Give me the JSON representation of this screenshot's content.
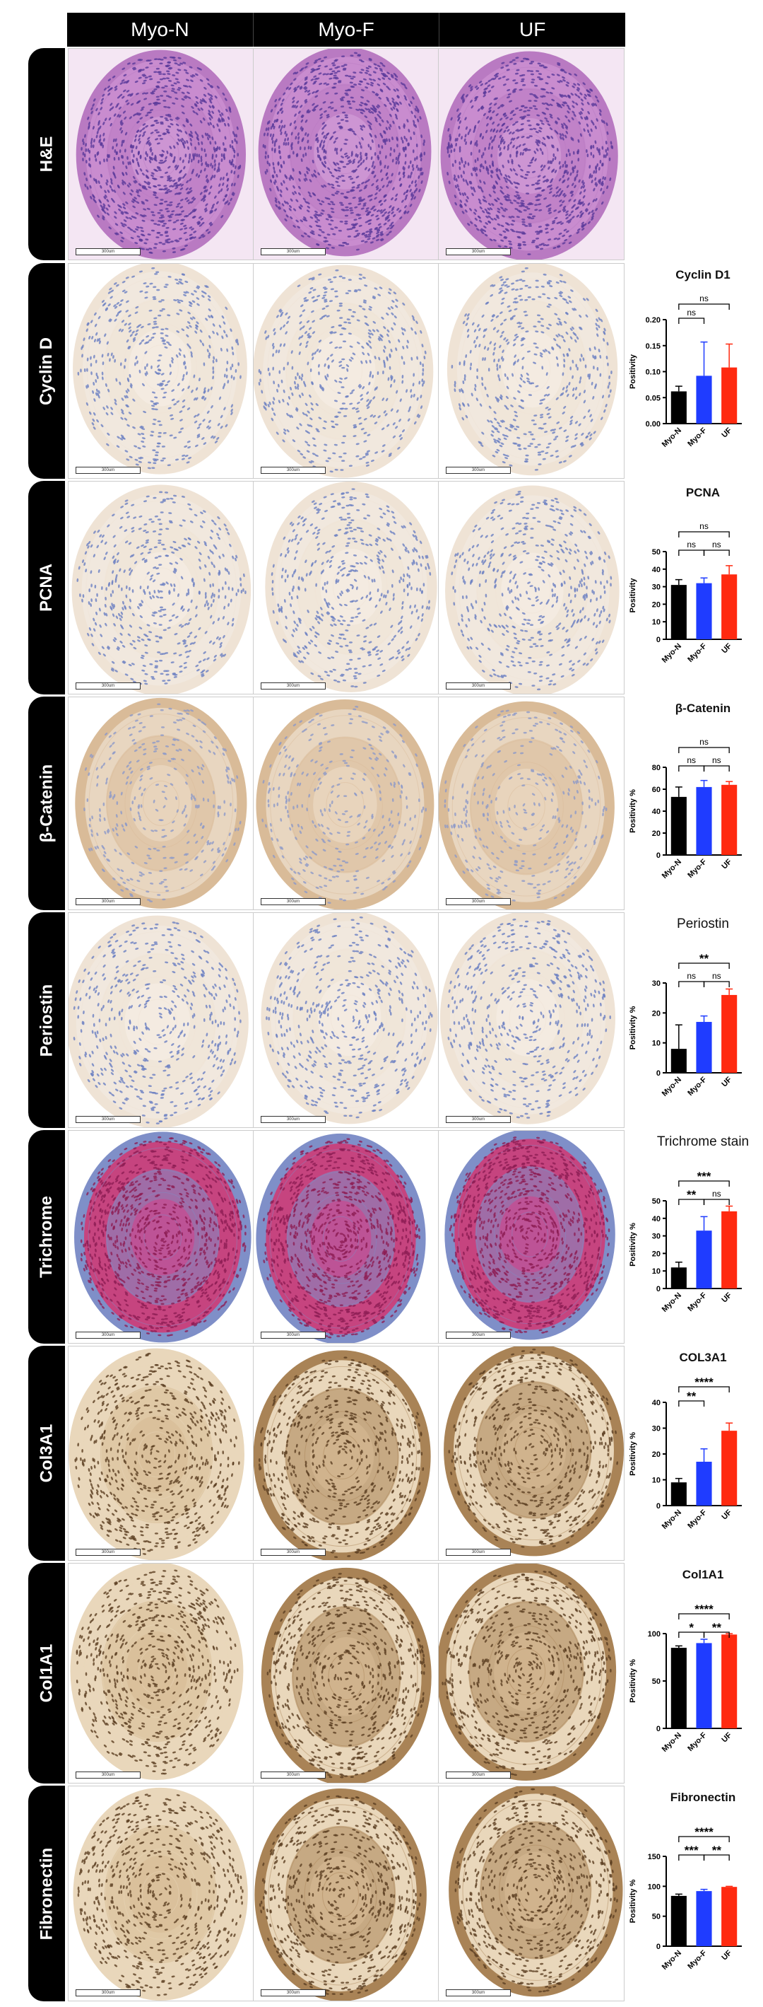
{
  "columns": [
    "Myo-N",
    "Myo-F",
    "UF"
  ],
  "scale_bar_label": "300um",
  "colors": {
    "Myo-N": "#000000",
    "Myo-F": "#1f3cff",
    "UF": "#ff2a10"
  },
  "rows": [
    {
      "label": "H&E",
      "stain": "he"
    },
    {
      "label": "Cyclin D",
      "stain": "ihc_light",
      "chart_data": {
        "type": "bar",
        "title": "Cyclin D1",
        "ylabel": "Positivity",
        "categories": [
          "Myo-N",
          "Myo-F",
          "UF"
        ],
        "values": [
          0.062,
          0.092,
          0.108
        ],
        "errors": [
          0.01,
          0.065,
          0.045
        ],
        "ylim": [
          0,
          0.2
        ],
        "yticks": [
          "0.00",
          "0.05",
          "0.10",
          "0.15",
          "0.20"
        ],
        "comparisons": [
          {
            "from": 0,
            "to": 1,
            "label": "ns"
          },
          {
            "from": 0,
            "to": 2,
            "label": "ns"
          }
        ]
      }
    },
    {
      "label": "PCNA",
      "stain": "ihc_light",
      "chart_data": {
        "type": "bar",
        "title": "PCNA",
        "ylabel": "Positivity",
        "categories": [
          "Myo-N",
          "Myo-F",
          "UF"
        ],
        "values": [
          31,
          32,
          37
        ],
        "errors": [
          3,
          3,
          5
        ],
        "ylim": [
          0,
          50
        ],
        "yticks": [
          "0",
          "10",
          "20",
          "30",
          "40",
          "50"
        ],
        "comparisons": [
          {
            "from": 0,
            "to": 1,
            "label": "ns"
          },
          {
            "from": 1,
            "to": 2,
            "label": "ns"
          },
          {
            "from": 0,
            "to": 2,
            "label": "ns"
          }
        ]
      }
    },
    {
      "label": "β-Catenin",
      "stain": "ihc_brown",
      "chart_data": {
        "type": "bar",
        "title": "β-Catenin",
        "ylabel": "Positivity %",
        "categories": [
          "Myo-N",
          "Myo-F",
          "UF"
        ],
        "values": [
          53,
          62,
          64
        ],
        "errors": [
          9,
          6,
          3
        ],
        "ylim": [
          0,
          80
        ],
        "yticks": [
          "0",
          "20",
          "40",
          "60",
          "80"
        ],
        "comparisons": [
          {
            "from": 0,
            "to": 1,
            "label": "ns"
          },
          {
            "from": 1,
            "to": 2,
            "label": "ns"
          },
          {
            "from": 0,
            "to": 2,
            "label": "ns"
          }
        ]
      }
    },
    {
      "label": "Periostin",
      "stain": "ihc_light",
      "chart_data": {
        "type": "bar",
        "title": "Periostin",
        "ylabel": "Positivity %",
        "categories": [
          "Myo-N",
          "Myo-F",
          "UF"
        ],
        "values": [
          8,
          17,
          26
        ],
        "errors": [
          8,
          2,
          2
        ],
        "ylim": [
          0,
          30
        ],
        "yticks": [
          "0",
          "10",
          "20",
          "30"
        ],
        "comparisons": [
          {
            "from": 0,
            "to": 1,
            "label": "ns"
          },
          {
            "from": 1,
            "to": 2,
            "label": "ns"
          },
          {
            "from": 0,
            "to": 2,
            "label": "**"
          }
        ]
      }
    },
    {
      "label": "Trichrome",
      "stain": "trichrome",
      "chart_data": {
        "type": "bar",
        "title": "Trichrome stain",
        "ylabel": "Positivity %",
        "categories": [
          "Myo-N",
          "Myo-F",
          "UF"
        ],
        "values": [
          12,
          33,
          44
        ],
        "errors": [
          3,
          8,
          3
        ],
        "ylim": [
          0,
          50
        ],
        "yticks": [
          "0",
          "10",
          "20",
          "30",
          "40",
          "50"
        ],
        "comparisons": [
          {
            "from": 0,
            "to": 1,
            "label": "**"
          },
          {
            "from": 1,
            "to": 2,
            "label": "ns"
          },
          {
            "from": 0,
            "to": 2,
            "label": "***"
          }
        ]
      }
    },
    {
      "label": "Col3A1",
      "stain": "ihc_dark",
      "chart_data": {
        "type": "bar",
        "title": "COL3A1",
        "ylabel": "Positivity %",
        "categories": [
          "Myo-N",
          "Myo-F",
          "UF"
        ],
        "values": [
          9,
          17,
          29
        ],
        "errors": [
          1.5,
          5,
          3
        ],
        "ylim": [
          0,
          40
        ],
        "yticks": [
          "0",
          "10",
          "20",
          "30",
          "40"
        ],
        "comparisons": [
          {
            "from": 0,
            "to": 1,
            "label": "**"
          },
          {
            "from": 0,
            "to": 2,
            "label": "****"
          }
        ]
      }
    },
    {
      "label": "Col1A1",
      "stain": "ihc_dark",
      "chart_data": {
        "type": "bar",
        "title": "Col1A1",
        "ylabel": "Positivity %",
        "categories": [
          "Myo-N",
          "Myo-F",
          "UF"
        ],
        "values": [
          85,
          90,
          99
        ],
        "errors": [
          2,
          4,
          1
        ],
        "ylim": [
          0,
          100
        ],
        "yticks": [
          "0",
          "50",
          "100"
        ],
        "comparisons": [
          {
            "from": 0,
            "to": 1,
            "label": "*"
          },
          {
            "from": 1,
            "to": 2,
            "label": "**"
          },
          {
            "from": 0,
            "to": 2,
            "label": "****"
          }
        ]
      }
    },
    {
      "label": "Fibronectin",
      "stain": "ihc_dark",
      "chart_data": {
        "type": "bar",
        "title": "Fibronectin",
        "ylabel": "Positivity %",
        "categories": [
          "Myo-N",
          "Myo-F",
          "UF"
        ],
        "values": [
          84,
          92,
          99
        ],
        "errors": [
          3,
          3,
          1
        ],
        "ylim": [
          0,
          150
        ],
        "yticks": [
          "0",
          "50",
          "100",
          "150"
        ],
        "comparisons": [
          {
            "from": 0,
            "to": 1,
            "label": "***"
          },
          {
            "from": 1,
            "to": 2,
            "label": "**"
          },
          {
            "from": 0,
            "to": 2,
            "label": "****"
          }
        ]
      }
    }
  ]
}
